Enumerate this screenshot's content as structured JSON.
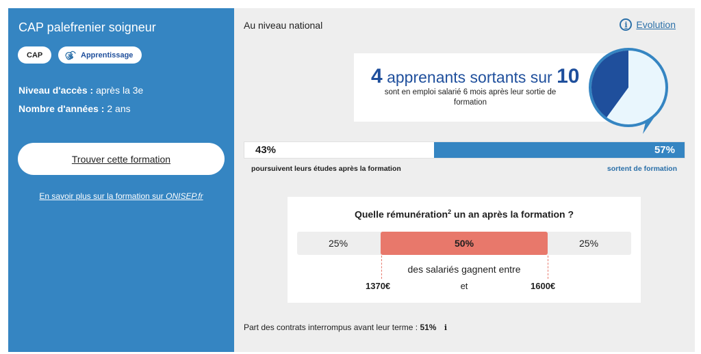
{
  "formation": {
    "title": "CAP palefrenier soigneur",
    "tags": [
      "CAP",
      "Apprentissage"
    ],
    "niveau_label": "Niveau d'accès :",
    "niveau_value": "après la 3e",
    "annees_label": "Nombre d'années :",
    "annees_value": "2 ans",
    "find_button": "Trouver cette formation",
    "more_link_prefix": "En savoir plus sur la formation sur ",
    "more_link_site": "ONISEP.fr"
  },
  "national": {
    "heading": "Au niveau national",
    "evolution_link": "Evolution",
    "emploi": {
      "count": "4",
      "middle": "apprenants sortants sur",
      "total": "10",
      "fraction": 0.4,
      "description": "sont en emploi salarié 6 mois après leur sortie de formation"
    },
    "poursuite": {
      "left_pct": "43%",
      "right_pct": "57%",
      "right_fraction": 0.57,
      "left_caption": "poursuivent leurs études après la formation",
      "right_caption": "sortent de formation"
    },
    "remuneration": {
      "title": "Quelle rémunération",
      "note": "2",
      "title_suffix": " un an après la formation ?",
      "low_pct": "25%",
      "mid_pct": "50%",
      "high_pct": "25%",
      "description": "des salariés gagnent entre",
      "low": "1370€",
      "and": "et",
      "high": "1600€"
    },
    "contrats": {
      "label": "Part des contrats interrompus avant leur terme :",
      "value": "51%",
      "info": "i"
    }
  },
  "colors": {
    "primary_blue": "#3585c2",
    "dark_blue": "#1f4f9c",
    "salmon": "#e8786b"
  }
}
